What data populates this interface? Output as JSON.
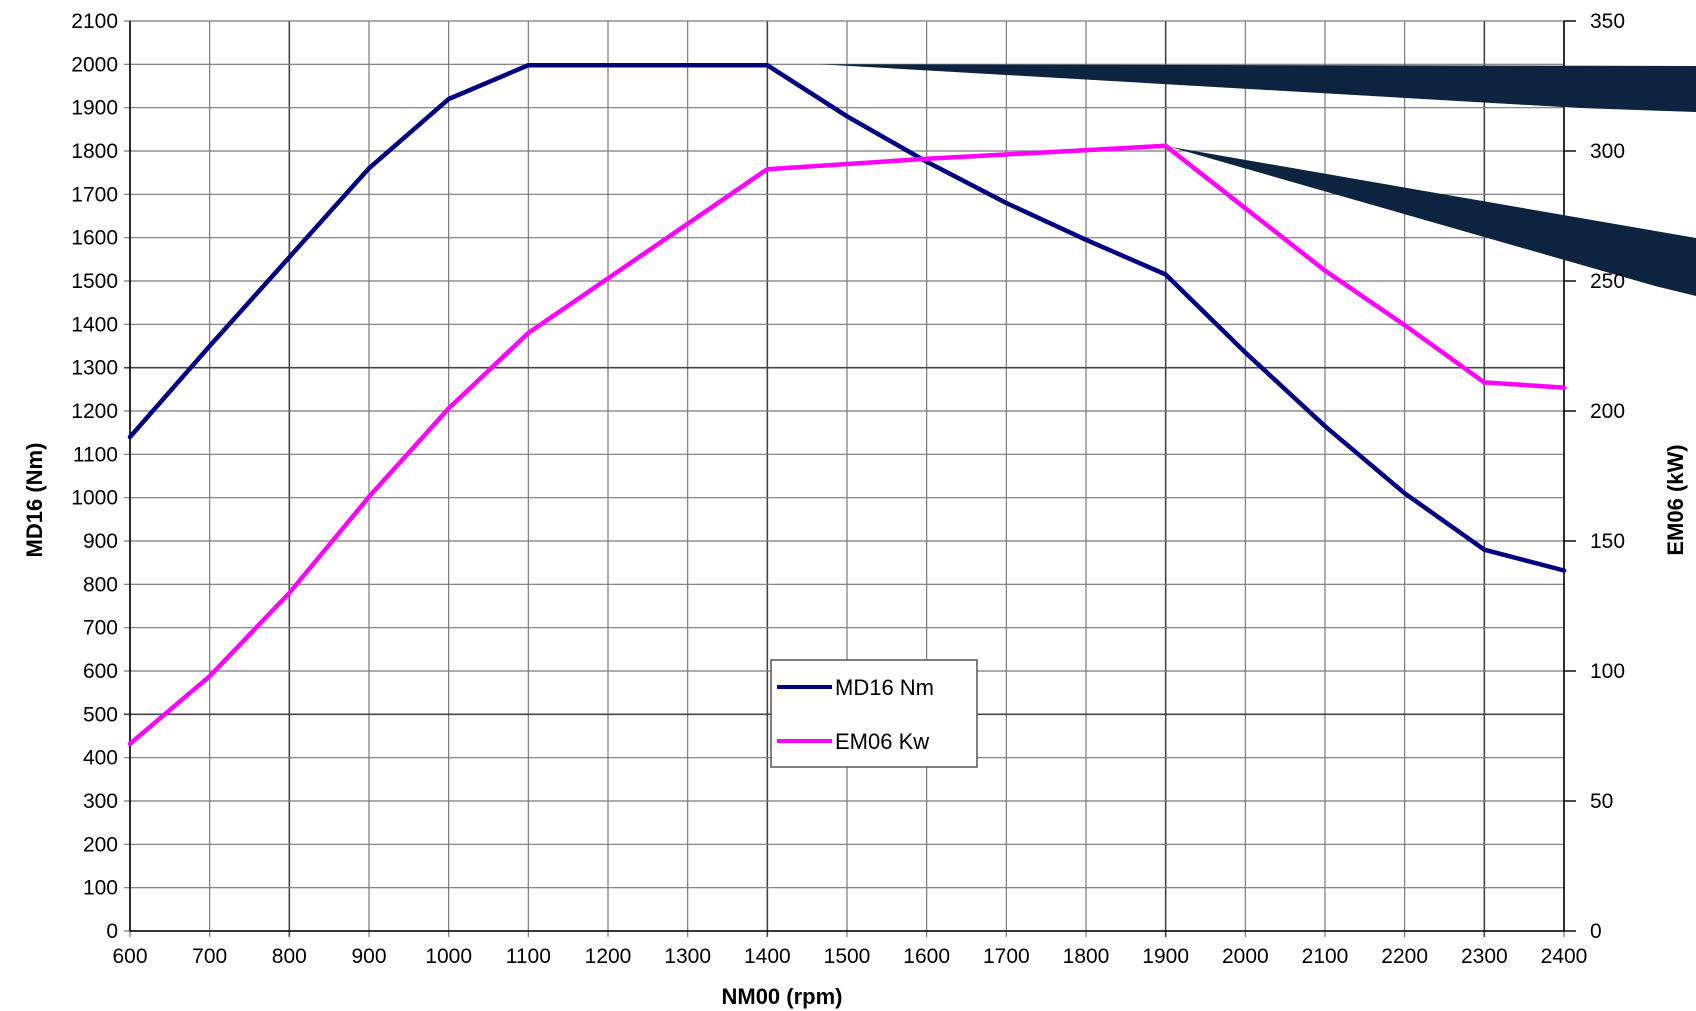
{
  "chart_data": {
    "type": "line",
    "x": [
      600,
      800,
      900,
      1000,
      1100,
      1400,
      1600,
      1900,
      2000,
      2300,
      2400
    ],
    "series": [
      {
        "name": "MD16 Nm",
        "axis": "left",
        "color": "#000080",
        "x": [
          600,
          700,
          800,
          900,
          1000,
          1100,
          1400,
          1500,
          1600,
          1700,
          1800,
          1900,
          2000,
          2100,
          2200,
          2300,
          2400
        ],
        "values": [
          1140,
          1350,
          1555,
          1760,
          1920,
          1998,
          1998,
          1880,
          1775,
          1680,
          1595,
          1515,
          1335,
          1165,
          1010,
          880,
          832
        ]
      },
      {
        "name": "EM06 Kw",
        "axis": "right",
        "color": "#ff00ff",
        "x": [
          600,
          700,
          800,
          900,
          1000,
          1100,
          1400,
          1600,
          1900,
          2000,
          2100,
          2200,
          2300,
          2400
        ],
        "values": [
          72,
          98,
          130,
          167,
          201,
          230,
          293,
          297,
          302,
          278,
          254,
          233,
          211,
          209
        ]
      }
    ],
    "xlabel": "NM00 (rpm)",
    "ylabel": "MD16 (Nm)",
    "y2label": "EM06 (kW)",
    "xlim": [
      600,
      2400
    ],
    "ylim": [
      0,
      2100
    ],
    "y2lim": [
      0,
      350
    ],
    "xticks": [
      "600",
      "700",
      "800",
      "900",
      "1000",
      "1100",
      "1200",
      "1300",
      "1400",
      "1500",
      "1600",
      "1700",
      "1800",
      "1900",
      "2000",
      "2100",
      "2200",
      "2300",
      "2400"
    ],
    "yticks": [
      "0",
      "100",
      "200",
      "300",
      "400",
      "500",
      "600",
      "700",
      "800",
      "900",
      "1000",
      "1100",
      "1200",
      "1300",
      "1400",
      "1500",
      "1600",
      "1700",
      "1800",
      "1900",
      "2000",
      "2100"
    ],
    "y2ticks": [
      "0",
      "50",
      "100",
      "150",
      "200",
      "250",
      "300",
      "350"
    ],
    "grid": true,
    "legend": "center",
    "annotations": [
      {
        "type": "callout-pointer",
        "target_series": "MD16 Nm",
        "x": 1400,
        "y": 1998,
        "color": "#0d2340"
      },
      {
        "type": "callout-pointer",
        "target_series": "EM06 Kw",
        "x": 1900,
        "y": 302,
        "color": "#0d2340"
      }
    ]
  }
}
